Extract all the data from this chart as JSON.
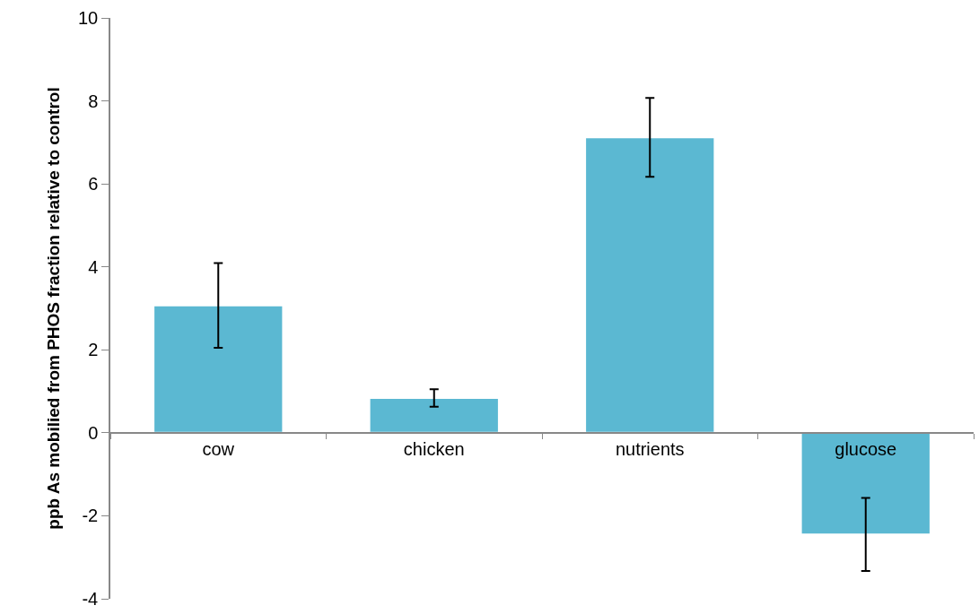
{
  "chart_data": {
    "type": "bar",
    "ylabel": "ppb As mobilied from PHOS fraction relative to control",
    "categories": [
      "cow",
      "chicken",
      "nutrients",
      "glucose"
    ],
    "values": [
      3.07,
      0.84,
      7.12,
      -2.45
    ],
    "errors": [
      1.02,
      0.21,
      0.95,
      0.88
    ],
    "color": "#5bb8d2",
    "ylim": [
      -4,
      10
    ],
    "yticks": [
      -4,
      -2,
      0,
      2,
      4,
      6,
      8,
      10
    ],
    "legend": false
  }
}
